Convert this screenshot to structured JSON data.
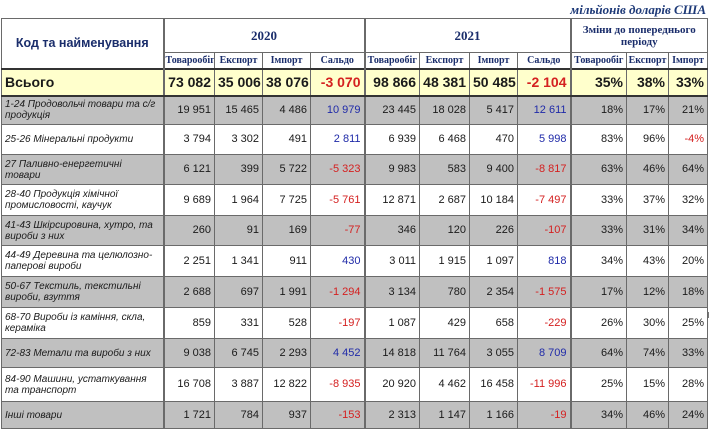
{
  "unit_label": "мільйонів доларів США",
  "header": {
    "name_col": "Код та найменування",
    "year1": "2020",
    "year2": "2021",
    "change": "Зміни до попереднього періоду",
    "sub": [
      "Товарообіг",
      "Експорт",
      "Імпорт",
      "Сальдо",
      "Товарообіг",
      "Експорт",
      "Імпорт",
      "Сальдо",
      "Товарообіг",
      "Експорт",
      "Імпорт"
    ]
  },
  "total": {
    "label": "Всього",
    "values": [
      "73 082",
      "35 006",
      "38 076",
      "-3 070",
      "98 866",
      "48 381",
      "50 485",
      "-2 104",
      "35%",
      "38%",
      "33%"
    ]
  },
  "rows": [
    {
      "label": "1-24 Продовольчі товари та с/г продукція",
      "values": [
        "19 951",
        "15 465",
        "4 486",
        "10 979",
        "23 445",
        "18 028",
        "5 417",
        "12 611",
        "18%",
        "17%",
        "21%"
      ]
    },
    {
      "label": "25-26 Мінеральні продукти",
      "values": [
        "3 794",
        "3 302",
        "491",
        "2 811",
        "6 939",
        "6 468",
        "470",
        "5 998",
        "83%",
        "96%",
        "-4%"
      ]
    },
    {
      "label": "27 Паливно-енергетичні товари",
      "values": [
        "6 121",
        "399",
        "5 722",
        "-5 323",
        "9 983",
        "583",
        "9 400",
        "-8 817",
        "63%",
        "46%",
        "64%"
      ]
    },
    {
      "label": "28-40 Продукція хімічної промисловості, каучук",
      "values": [
        "9 689",
        "1 964",
        "7 725",
        "-5 761",
        "12 871",
        "2 687",
        "10 184",
        "-7 497",
        "33%",
        "37%",
        "32%"
      ]
    },
    {
      "label": "41-43 Шкірсировина, хутро, та вироби з них",
      "values": [
        "260",
        "91",
        "169",
        "-77",
        "346",
        "120",
        "226",
        "-107",
        "33%",
        "31%",
        "34%"
      ]
    },
    {
      "label": "44-49 Деревина та целюлозно-паперові вироби",
      "values": [
        "2 251",
        "1 341",
        "911",
        "430",
        "3 011",
        "1 915",
        "1 097",
        "818",
        "34%",
        "43%",
        "20%"
      ]
    },
    {
      "label": "50-67 Текстиль, текстильні вироби, взуття",
      "values": [
        "2 688",
        "697",
        "1 991",
        "-1 294",
        "3 134",
        "780",
        "2 354",
        "-1 575",
        "17%",
        "12%",
        "18%"
      ]
    },
    {
      "label": "68-70 Вироби із каміння, скла, кераміка",
      "values": [
        "859",
        "331",
        "528",
        "-197",
        "1 087",
        "429",
        "658",
        "-229",
        "26%",
        "30%",
        "25%"
      ]
    },
    {
      "label": "72-83 Метали та вироби з них",
      "values": [
        "9 038",
        "6 745",
        "2 293",
        "4 452",
        "14 818",
        "11 764",
        "3 055",
        "8 709",
        "64%",
        "74%",
        "33%"
      ]
    },
    {
      "label": "84-90 Машини, устаткування та транспорт",
      "values": [
        "16 708",
        "3 887",
        "12 822",
        "-8 935",
        "20 920",
        "4 462",
        "16 458",
        "-11 996",
        "25%",
        "15%",
        "28%"
      ]
    },
    {
      "label": "Інші товари",
      "values": [
        "1 721",
        "784",
        "937",
        "-153",
        "2 313",
        "1 147",
        "1 166",
        "-19",
        "34%",
        "46%",
        "24%"
      ]
    }
  ]
}
